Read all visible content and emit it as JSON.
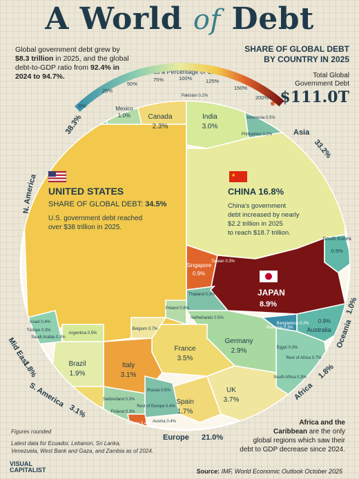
{
  "header": {
    "title_left": "A World",
    "title_of": "of",
    "title_right": "Debt",
    "intro_1": "Global government debt grew by ",
    "intro_b1": "$8.3 trillion",
    "intro_2": " in 2025, and the global debt-to-GDP ratio from ",
    "intro_b2": "92.4% in 2024 to 94.7%.",
    "subtitle_1": "SHARE OF GLOBAL DEBT",
    "subtitle_2": "BY COUNTRY IN 2025",
    "total_label_1": "Total Global",
    "total_label_2": "Government Debt",
    "total_value": "$111.0T"
  },
  "scale": {
    "title": "Debt as a Percentage of GDP",
    "ticks": [
      "0%",
      "25%",
      "50%",
      "75%",
      "100%",
      "125%",
      "150%",
      "200%+"
    ]
  },
  "callouts": {
    "us_name": "UNITED STATES",
    "us_share_label": "SHARE OF GLOBAL DEBT: ",
    "us_share": "34.5%",
    "us_note_1": "U.S. government debt reached",
    "us_note_2": "over $38 trillion in 2025.",
    "china_name": "CHINA 16.8%",
    "china_note_1": "China's government",
    "china_note_2": "debt increased by nearly",
    "china_note_3": "$2.2 trillion in 2025",
    "china_note_4": "to reach $18.7 trillion.",
    "japan_name": "JAPAN",
    "japan_share": "8.9%"
  },
  "footer": {
    "note_1": "Figures rounded",
    "note_2": "Latest data for Ecuador, Lebanon, Sri Lanka,",
    "note_3": "Venezuela, West Bank and Gaza, and Zambia as of 2024.",
    "africa_1": "Africa and the",
    "africa_2": "Caribbean",
    "africa_3": " are the only",
    "africa_4": "global regions which saw their",
    "africa_5": "debt to GDP decrease since 2024.",
    "source_label": "Source:",
    "source_text": " IMF, World Economic Outlook October 2025",
    "logo_1": "VISUAL",
    "logo_2": "CAPITALIST"
  },
  "chart_data": {
    "type": "voronoi treemap",
    "title": "SHARE OF GLOBAL DEBT BY COUNTRY IN 2025",
    "total": "$111.0T",
    "regions": [
      {
        "name": "N. America",
        "share": "38.3%"
      },
      {
        "name": "Asia",
        "share": "33.2%"
      },
      {
        "name": "Europe",
        "share": "21.0%"
      },
      {
        "name": "S. America",
        "share": "3.1%"
      },
      {
        "name": "Mid East",
        "share": "1.8%"
      },
      {
        "name": "Africa",
        "share": "1.8%"
      },
      {
        "name": "Oceania",
        "share": "1.0%"
      }
    ],
    "countries": [
      {
        "name": "UNITED STATES",
        "region": "N. America",
        "share": 34.5,
        "color": "#f2c94c"
      },
      {
        "name": "Canada",
        "region": "N. America",
        "share": 2.3,
        "color": "#f2c94c"
      },
      {
        "name": "Mexico",
        "region": "N. America",
        "share": 1.0,
        "color": "#b5dba8"
      },
      {
        "name": "CHINA",
        "region": "Asia",
        "share": 16.8,
        "color": "#e8eb9e"
      },
      {
        "name": "JAPAN",
        "region": "Asia",
        "share": 8.9,
        "color": "#7a1414"
      },
      {
        "name": "India",
        "region": "Asia",
        "share": 3.0,
        "color": "#d6ea9a"
      },
      {
        "name": "Singapore",
        "region": "Asia",
        "share": 0.9,
        "color": "#e0652b"
      },
      {
        "name": "South Korea",
        "region": "Asia",
        "share": 0.9,
        "color": "#5fb8a7"
      },
      {
        "name": "France",
        "region": "Europe",
        "share": 3.5,
        "color": "#f0d96e"
      },
      {
        "name": "UK",
        "region": "Europe",
        "share": 3.7,
        "color": "#f0e69e"
      },
      {
        "name": "Italy",
        "region": "Europe",
        "share": 3.1,
        "color": "#eda23c"
      },
      {
        "name": "Germany",
        "region": "Europe",
        "share": 2.9,
        "color": "#a8d9a0"
      },
      {
        "name": "Spain",
        "region": "Europe",
        "share": 1.7,
        "color": "#f2d978"
      },
      {
        "name": "Brazil",
        "region": "S. America",
        "share": 1.9,
        "color": "#e3eca8"
      },
      {
        "name": "Australia",
        "region": "Oceania",
        "share": 0.9,
        "color": "#5fb8a7"
      }
    ],
    "small_labels": [
      {
        "name": "Pakistan",
        "value": "0.2%"
      },
      {
        "name": "Indonesia",
        "value": "0.5%"
      },
      {
        "name": "Philippines",
        "value": "0.2%"
      },
      {
        "name": "Thailand",
        "value": "0.3%"
      },
      {
        "name": "Taiwan",
        "value": "0.3%"
      },
      {
        "name": "Bangladesh",
        "value": "0.2%"
      },
      {
        "name": "Malaysia",
        "value": "0.3%"
      },
      {
        "name": "Poland",
        "value": "0.6%"
      },
      {
        "name": "Netherlands",
        "value": "0.5%"
      },
      {
        "name": "Belgium",
        "value": "0.7%"
      },
      {
        "name": "Russia",
        "value": "0.5%"
      },
      {
        "name": "Switzerland",
        "value": "0.3%"
      },
      {
        "name": "Austria",
        "value": "0.4%"
      },
      {
        "name": "Greece",
        "value": "0.4%"
      },
      {
        "name": "Finland",
        "value": "0.3%"
      },
      {
        "name": "Rest of Europe",
        "value": "0.4%"
      },
      {
        "name": "Egypt",
        "value": "0.3%"
      },
      {
        "name": "South Africa",
        "value": "0.3%"
      },
      {
        "name": "Rest of Africa",
        "value": "0.7%"
      },
      {
        "name": "Saudi Arabia",
        "value": "0.3%"
      },
      {
        "name": "Israel",
        "value": "0.4%"
      },
      {
        "name": "Türkiye",
        "value": "0.3%"
      },
      {
        "name": "Argentina",
        "value": "0.5%"
      }
    ]
  },
  "colors": {
    "navy": "#1f3a4a",
    "accent": "#e0652b",
    "bg": "#ece6d6"
  }
}
